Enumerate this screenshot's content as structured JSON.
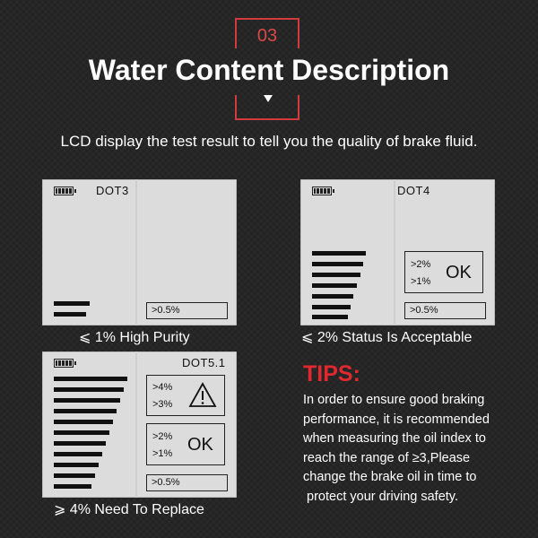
{
  "header": {
    "badge": "03",
    "title": "Water Content Description",
    "intro": "LCD display the test result to tell you the quality of brake fluid."
  },
  "panels": [
    {
      "label": "DOT3",
      "bottom_box": ">0.5%",
      "caption": "⩽ 1% High Purity"
    },
    {
      "label": "DOT4",
      "box_line1": ">2%",
      "box_line2": ">1%",
      "box_status": "OK",
      "bottom_box": ">0.5%",
      "caption": "⩽ 2% Status Is Acceptable"
    },
    {
      "label": "DOT5.1",
      "warn_line1": ">4%",
      "warn_line2": ">3%",
      "box_line1": ">2%",
      "box_line2": ">1%",
      "box_status": "OK",
      "bottom_box": ">0.5%",
      "caption": "⩾ 4% Need To Replace"
    }
  ],
  "tips": {
    "title": "TIPS:",
    "lines": [
      "In order to ensure good braking",
      "performance, it is recommended",
      "when measuring the oil index to",
      "reach the range of ≥3,Please",
      "change the brake oil in time to",
      " protect your driving safety."
    ]
  },
  "colors": {
    "accent": "#d13b3b",
    "tips_red": "#e0282f",
    "lcd": "#dcdcdc"
  },
  "icons": [
    "battery-icon",
    "warning-triangle-icon",
    "down-arrow-icon"
  ]
}
